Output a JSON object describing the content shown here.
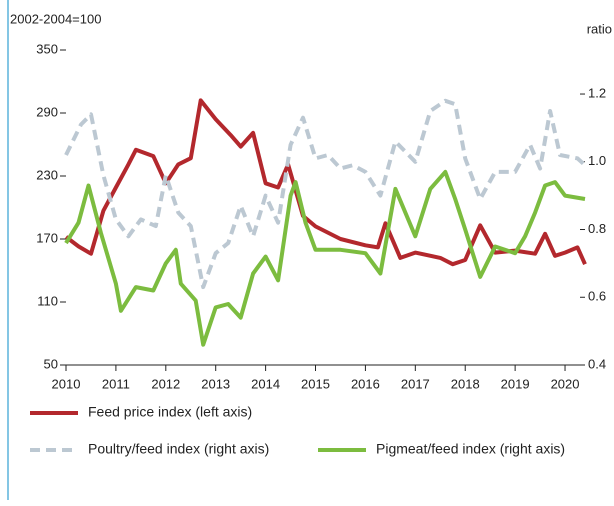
{
  "chart_data": {
    "type": "line",
    "y_label": "2002-2004=100",
    "y2_label": "ratio",
    "xlim": [
      2010,
      2020.3
    ],
    "xticks": [
      2010,
      2011,
      2012,
      2013,
      2014,
      2015,
      2016,
      2017,
      2018,
      2019,
      2020
    ],
    "ylim": [
      50,
      350
    ],
    "yticks": [
      50,
      110,
      170,
      230,
      290,
      350
    ],
    "y2lim": [
      0.4,
      1.33
    ],
    "y2ticks": [
      0.4,
      0.6,
      0.8,
      {
        "value": 1.0,
        "label": "1.0"
      },
      1.2
    ],
    "grid": false,
    "series": [
      {
        "name": "Feed price index (left axis)",
        "color": "#b3282d",
        "dash": false,
        "x": [
          2010.0,
          2010.25,
          2010.5,
          2010.75,
          2011.0,
          2011.25,
          2011.4,
          2011.75,
          2012.0,
          2012.25,
          2012.5,
          2012.7,
          2013.0,
          2013.3,
          2013.5,
          2013.75,
          2014.0,
          2014.25,
          2014.45,
          2014.75,
          2015.0,
          2015.5,
          2016.0,
          2016.25,
          2016.4,
          2016.7,
          2017.0,
          2017.5,
          2017.75,
          2018.0,
          2018.3,
          2018.6,
          2019.0,
          2019.4,
          2019.6,
          2019.8,
          2020.0,
          2020.25,
          2020.4
        ],
        "values": [
          172,
          163,
          156,
          197,
          219,
          241,
          255,
          249,
          223,
          241,
          247,
          302,
          284,
          269,
          258,
          271,
          223,
          219,
          241,
          192,
          182,
          170,
          164,
          162,
          185,
          152,
          157,
          152,
          146,
          150,
          183,
          157,
          159,
          156,
          175,
          154,
          157,
          162,
          146
        ]
      },
      {
        "name": "Poultry/feed index (right axis)",
        "color": "#bcc8d2",
        "dash": true,
        "axis": "y2",
        "x": [
          2010.0,
          2010.3,
          2010.5,
          2010.75,
          2011.0,
          2011.25,
          2011.5,
          2011.8,
          2012.0,
          2012.25,
          2012.5,
          2012.75,
          2013.0,
          2013.25,
          2013.5,
          2013.75,
          2014.0,
          2014.25,
          2014.5,
          2014.75,
          2015.0,
          2015.25,
          2015.5,
          2015.75,
          2016.0,
          2016.3,
          2016.6,
          2017.0,
          2017.3,
          2017.6,
          2017.8,
          2018.0,
          2018.3,
          2018.6,
          2019.0,
          2019.3,
          2019.5,
          2019.7,
          2019.9,
          2020.25,
          2020.4
        ],
        "values": [
          1.02,
          1.11,
          1.14,
          0.96,
          0.83,
          0.78,
          0.83,
          0.81,
          0.96,
          0.85,
          0.81,
          0.63,
          0.73,
          0.76,
          0.87,
          0.78,
          0.9,
          0.82,
          1.05,
          1.13,
          1.01,
          1.02,
          0.98,
          0.99,
          0.97,
          0.9,
          1.06,
          1.0,
          1.15,
          1.18,
          1.17,
          1.01,
          0.89,
          0.97,
          0.97,
          1.05,
          0.98,
          1.15,
          1.02,
          1.01,
          0.99
        ]
      },
      {
        "name": "Pigmeat/feed index (right axis)",
        "color": "#7cbc3f",
        "dash": false,
        "axis": "y2",
        "x": [
          2010.0,
          2010.25,
          2010.45,
          2010.7,
          2011.0,
          2011.1,
          2011.4,
          2011.75,
          2012.0,
          2012.2,
          2012.3,
          2012.6,
          2012.75,
          2013.0,
          2013.25,
          2013.5,
          2013.75,
          2014.0,
          2014.25,
          2014.5,
          2014.6,
          2014.8,
          2015.0,
          2015.5,
          2016.0,
          2016.3,
          2016.6,
          2017.0,
          2017.3,
          2017.6,
          2017.8,
          2018.0,
          2018.3,
          2018.6,
          2019.0,
          2019.2,
          2019.4,
          2019.6,
          2019.8,
          2020.0,
          2020.4
        ],
        "values": [
          0.76,
          0.82,
          0.93,
          0.79,
          0.64,
          0.56,
          0.63,
          0.62,
          0.7,
          0.74,
          0.64,
          0.59,
          0.46,
          0.57,
          0.58,
          0.54,
          0.67,
          0.72,
          0.65,
          0.9,
          0.94,
          0.82,
          0.74,
          0.74,
          0.73,
          0.67,
          0.92,
          0.78,
          0.92,
          0.97,
          0.89,
          0.8,
          0.66,
          0.75,
          0.73,
          0.78,
          0.85,
          0.93,
          0.94,
          0.9,
          0.89
        ]
      }
    ]
  }
}
